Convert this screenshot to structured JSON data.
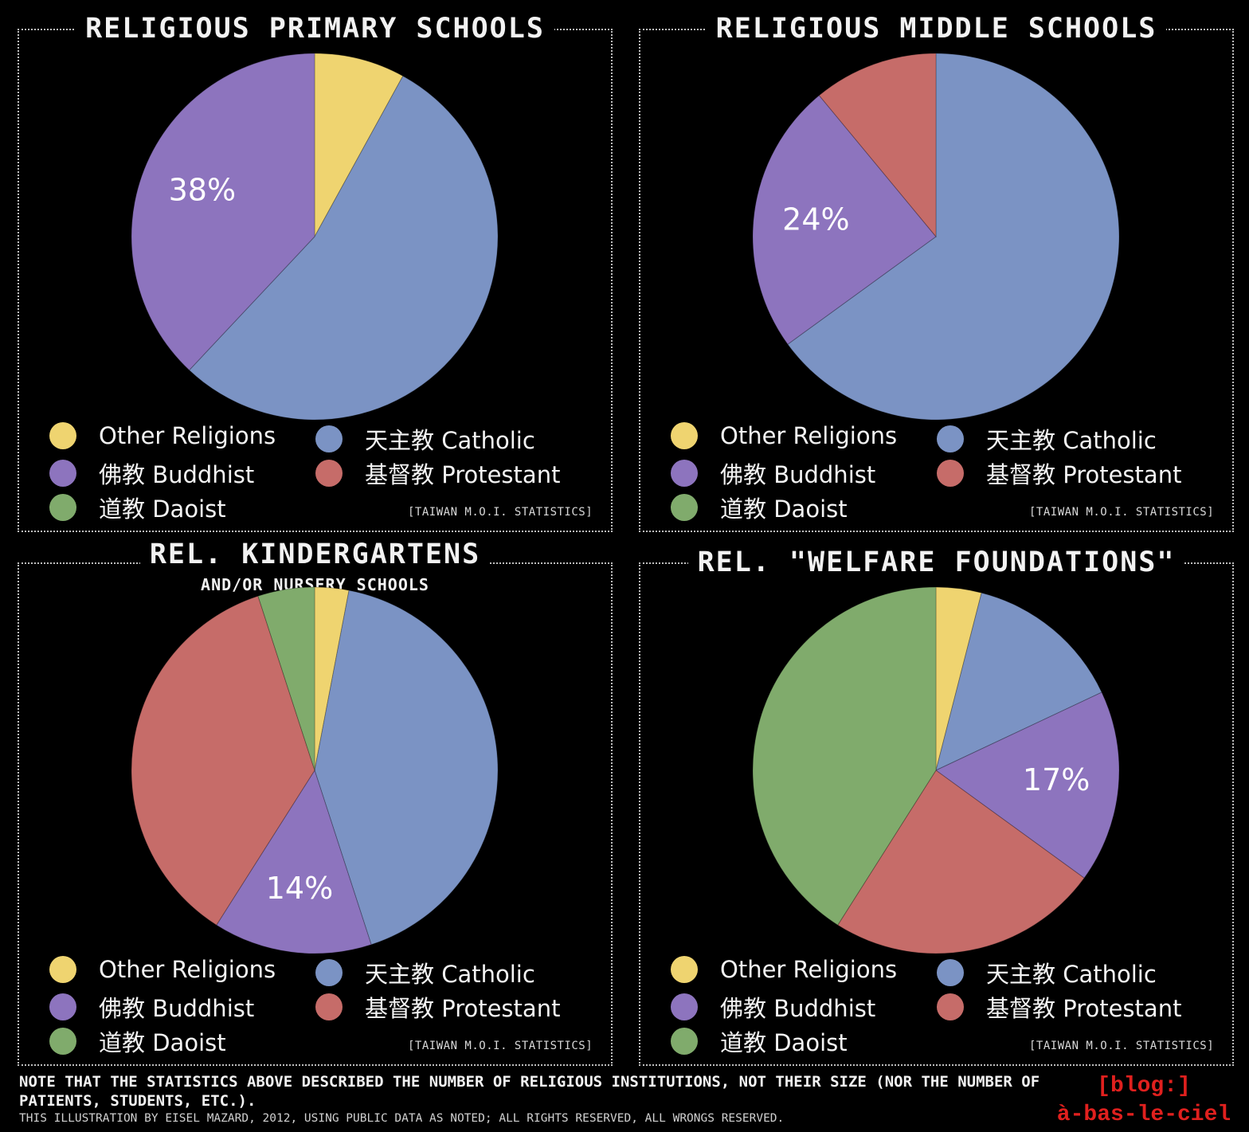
{
  "legend": {
    "other": "Other Religions",
    "catholic": "天主教 Catholic",
    "buddhist": "佛教 Buddhist",
    "protestant": "基督教 Protestant",
    "daoist": "道教 Daoist"
  },
  "colors": {
    "other": "#efd470",
    "catholic": "#7b93c4",
    "buddhist": "#8d74be",
    "protestant": "#c66c69",
    "daoist": "#80ab6c"
  },
  "source": "[Taiwan M.O.I. Statistics]",
  "footer": {
    "note": "Note that the statistics above described the number of religious institutions, not their size (nor the number of patients, students, etc.).",
    "credit": "This illustration by Eisel Mazard, 2012, using public data as noted; all rights reserved, all wrongs reserved.",
    "brand_line1": "[blog:]",
    "brand_line1_b": "",
    "brand_line2": "à-bas-le-ciel"
  },
  "chart_data": [
    {
      "type": "pie",
      "title": "Religious Primary Schools",
      "subtitle": "",
      "slices": [
        {
          "key": "other",
          "label": "Other Religions",
          "value": 8
        },
        {
          "key": "catholic",
          "label": "天主教 Catholic",
          "value": 54
        },
        {
          "key": "buddhist",
          "label": "佛教 Buddhist",
          "value": 38,
          "data_label": "38%"
        }
      ]
    },
    {
      "type": "pie",
      "title": "Religious Middle Schools",
      "subtitle": "",
      "slices": [
        {
          "key": "catholic",
          "label": "天主教 Catholic",
          "value": 65
        },
        {
          "key": "buddhist",
          "label": "佛教 Buddhist",
          "value": 24,
          "data_label": "24%"
        },
        {
          "key": "protestant",
          "label": "基督教 Protestant",
          "value": 11
        }
      ]
    },
    {
      "type": "pie",
      "title": "Rel. Kindergartens",
      "subtitle": "and/or nursery schools",
      "slices": [
        {
          "key": "other",
          "label": "Other Religions",
          "value": 3
        },
        {
          "key": "catholic",
          "label": "天主教 Catholic",
          "value": 42
        },
        {
          "key": "buddhist",
          "label": "佛教 Buddhist",
          "value": 14,
          "data_label": "14%"
        },
        {
          "key": "protestant",
          "label": "基督教 Protestant",
          "value": 36
        },
        {
          "key": "daoist",
          "label": "道教 Daoist",
          "value": 5
        }
      ]
    },
    {
      "type": "pie",
      "title": "Rel. \"Welfare Foundations\"",
      "subtitle": "",
      "slices": [
        {
          "key": "other",
          "label": "Other Religions",
          "value": 4
        },
        {
          "key": "catholic",
          "label": "天主教 Catholic",
          "value": 14
        },
        {
          "key": "buddhist",
          "label": "佛教 Buddhist",
          "value": 17,
          "data_label": "17%"
        },
        {
          "key": "protestant",
          "label": "基督教 Protestant",
          "value": 24
        },
        {
          "key": "daoist",
          "label": "道教 Daoist",
          "value": 41
        }
      ]
    }
  ]
}
